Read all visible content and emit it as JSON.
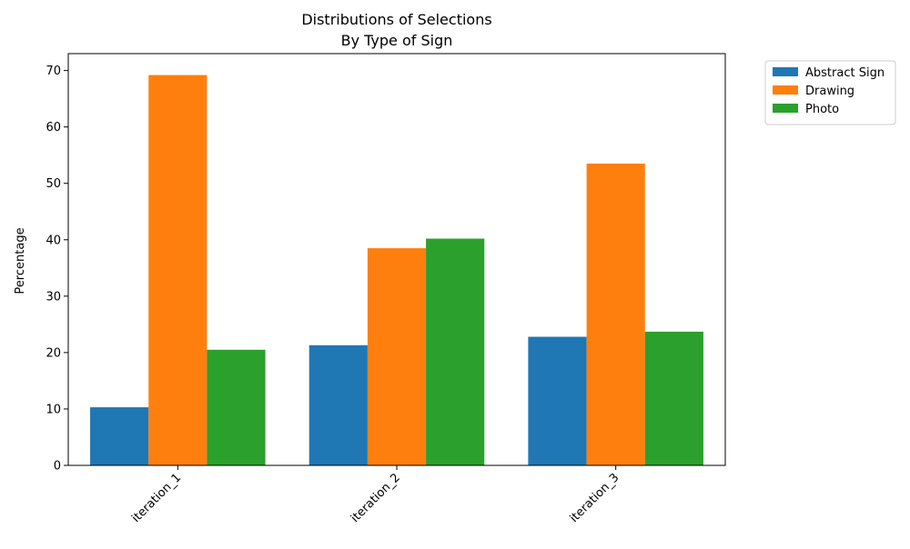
{
  "chart_data": {
    "type": "bar",
    "title_line1": "Distributions of Selections",
    "title_line2": "By Type of Sign",
    "xlabel": "",
    "ylabel": "Percentage",
    "categories": [
      "iteration_1",
      "iteration_2",
      "iteration_3"
    ],
    "series": [
      {
        "name": "Abstract Sign",
        "color": "#1f77b4",
        "values": [
          10.3,
          21.3,
          22.8
        ]
      },
      {
        "name": "Drawing",
        "color": "#ff7f0e",
        "values": [
          69.2,
          38.5,
          53.5
        ]
      },
      {
        "name": "Photo",
        "color": "#2ca02c",
        "values": [
          20.5,
          40.2,
          23.7
        ]
      }
    ],
    "ylim": [
      0,
      73
    ],
    "yticks": [
      0,
      10,
      20,
      30,
      40,
      50,
      60,
      70
    ],
    "legend_position": "outside-top-right",
    "grid": false
  }
}
